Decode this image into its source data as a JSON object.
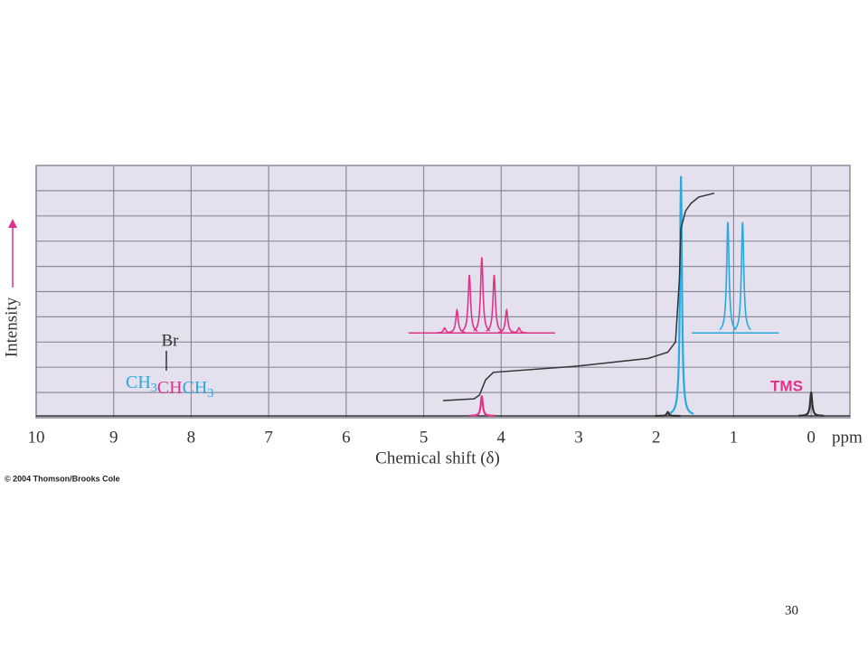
{
  "chart_data": {
    "type": "nmr",
    "xlabel": "Chemical shift (δ)",
    "x_unit": "ppm",
    "ylabel": "Intensity",
    "xlim": [
      10,
      -0.5
    ],
    "xticks": [
      10,
      9,
      8,
      7,
      6,
      5,
      4,
      3,
      2,
      1,
      0
    ],
    "ylim": [
      0,
      10
    ],
    "ygrid": [
      1,
      2,
      3,
      4,
      5,
      6,
      7,
      8,
      9
    ],
    "grid": true,
    "background": "#e4e0ee",
    "peaks": [
      {
        "shift": 4.25,
        "height": 0.8,
        "color": "#e0338a"
      },
      {
        "shift": 1.68,
        "height": 9.5,
        "color": "#29a9e0"
      },
      {
        "shift": 1.85,
        "height": 0.15,
        "color": "#333333"
      },
      {
        "shift": 0,
        "height": 0.95,
        "color": "#333333"
      }
    ],
    "integral": {
      "color": "#333333",
      "x": [
        4.75,
        4.35,
        4.28,
        4.2,
        4.1,
        3,
        2.1,
        1.85,
        1.75,
        1.7,
        1.68,
        1.62,
        1.55,
        1.45,
        1.25
      ],
      "values": [
        0.68,
        0.75,
        0.9,
        1.5,
        1.8,
        2.05,
        2.35,
        2.6,
        3.0,
        5.5,
        7.5,
        8.2,
        8.5,
        8.75,
        8.9
      ]
    },
    "insets": [
      {
        "color": "#e0338a",
        "center": 4.25,
        "spacing": 0.16,
        "base": 3.36,
        "heights": [
          0.2,
          0.9,
          2.3,
          3.0,
          2.3,
          0.9,
          0.2
        ]
      },
      {
        "color": "#29a9e0",
        "center": 0.98,
        "spacing": 0.19,
        "base": 3.36,
        "heights": [
          4.4,
          4.4
        ]
      }
    ],
    "annotation": {
      "text": "TMS",
      "color": "#e0338a"
    },
    "structure": {
      "substituent": "Br",
      "parts": [
        {
          "text": "CH",
          "sub": "3",
          "color": "#29a9e0"
        },
        {
          "text": "CH",
          "color": "#e0338a"
        },
        {
          "text": "CH",
          "sub": "3",
          "color": "#29a9e0"
        }
      ]
    }
  },
  "copyright": "© 2004 Thomson/Brooks Cole",
  "slide_number": "30"
}
